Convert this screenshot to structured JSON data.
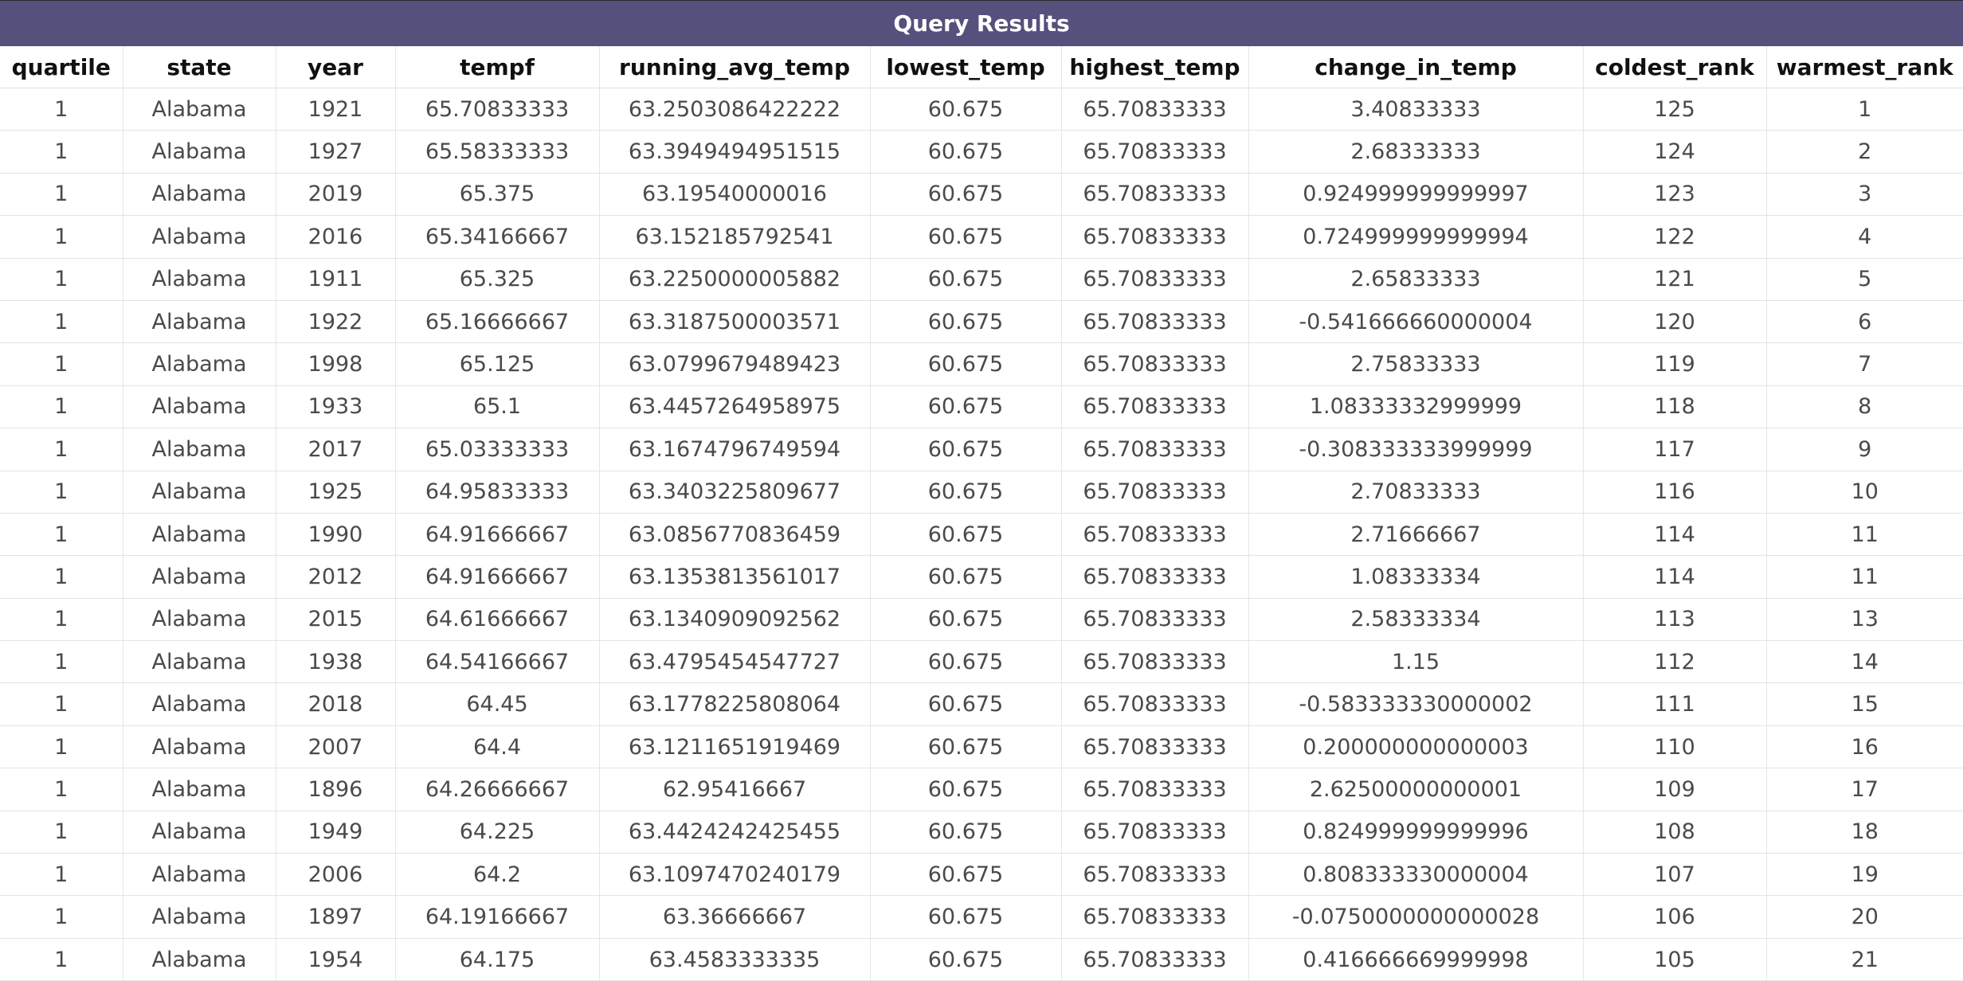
{
  "title": "Query Results",
  "columns": [
    "quartile",
    "state",
    "year",
    "tempf",
    "running_avg_temp",
    "lowest_temp",
    "highest_temp",
    "change_in_temp",
    "coldest_rank",
    "warmest_rank"
  ],
  "rows": [
    [
      "1",
      "Alabama",
      "1921",
      "65.70833333",
      "63.2503086422222",
      "60.675",
      "65.70833333",
      "3.40833333",
      "125",
      "1"
    ],
    [
      "1",
      "Alabama",
      "1927",
      "65.58333333",
      "63.3949494951515",
      "60.675",
      "65.70833333",
      "2.68333333",
      "124",
      "2"
    ],
    [
      "1",
      "Alabama",
      "2019",
      "65.375",
      "63.19540000016",
      "60.675",
      "65.70833333",
      "0.924999999999997",
      "123",
      "3"
    ],
    [
      "1",
      "Alabama",
      "2016",
      "65.34166667",
      "63.152185792541",
      "60.675",
      "65.70833333",
      "0.724999999999994",
      "122",
      "4"
    ],
    [
      "1",
      "Alabama",
      "1911",
      "65.325",
      "63.2250000005882",
      "60.675",
      "65.70833333",
      "2.65833333",
      "121",
      "5"
    ],
    [
      "1",
      "Alabama",
      "1922",
      "65.16666667",
      "63.3187500003571",
      "60.675",
      "65.70833333",
      "-0.541666660000004",
      "120",
      "6"
    ],
    [
      "1",
      "Alabama",
      "1998",
      "65.125",
      "63.0799679489423",
      "60.675",
      "65.70833333",
      "2.75833333",
      "119",
      "7"
    ],
    [
      "1",
      "Alabama",
      "1933",
      "65.1",
      "63.4457264958975",
      "60.675",
      "65.70833333",
      "1.08333332999999",
      "118",
      "8"
    ],
    [
      "1",
      "Alabama",
      "2017",
      "65.03333333",
      "63.1674796749594",
      "60.675",
      "65.70833333",
      "-0.308333333999999",
      "117",
      "9"
    ],
    [
      "1",
      "Alabama",
      "1925",
      "64.95833333",
      "63.3403225809677",
      "60.675",
      "65.70833333",
      "2.70833333",
      "116",
      "10"
    ],
    [
      "1",
      "Alabama",
      "1990",
      "64.91666667",
      "63.0856770836459",
      "60.675",
      "65.70833333",
      "2.71666667",
      "114",
      "11"
    ],
    [
      "1",
      "Alabama",
      "2012",
      "64.91666667",
      "63.1353813561017",
      "60.675",
      "65.70833333",
      "1.08333334",
      "114",
      "11"
    ],
    [
      "1",
      "Alabama",
      "2015",
      "64.61666667",
      "63.1340909092562",
      "60.675",
      "65.70833333",
      "2.58333334",
      "113",
      "13"
    ],
    [
      "1",
      "Alabama",
      "1938",
      "64.54166667",
      "63.4795454547727",
      "60.675",
      "65.70833333",
      "1.15",
      "112",
      "14"
    ],
    [
      "1",
      "Alabama",
      "2018",
      "64.45",
      "63.1778225808064",
      "60.675",
      "65.70833333",
      "-0.583333330000002",
      "111",
      "15"
    ],
    [
      "1",
      "Alabama",
      "2007",
      "64.4",
      "63.1211651919469",
      "60.675",
      "65.70833333",
      "0.200000000000003",
      "110",
      "16"
    ],
    [
      "1",
      "Alabama",
      "1896",
      "64.26666667",
      "62.95416667",
      "60.675",
      "65.70833333",
      "2.62500000000001",
      "109",
      "17"
    ],
    [
      "1",
      "Alabama",
      "1949",
      "64.225",
      "63.4424242425455",
      "60.675",
      "65.70833333",
      "0.824999999999996",
      "108",
      "18"
    ],
    [
      "1",
      "Alabama",
      "2006",
      "64.2",
      "63.1097470240179",
      "60.675",
      "65.70833333",
      "0.808333330000004",
      "107",
      "19"
    ],
    [
      "1",
      "Alabama",
      "1897",
      "64.19166667",
      "63.36666667",
      "60.675",
      "65.70833333",
      "-0.0750000000000028",
      "106",
      "20"
    ],
    [
      "1",
      "Alabama",
      "1954",
      "64.175",
      "63.4583333335",
      "60.675",
      "65.70833333",
      "0.416666669999998",
      "105",
      "21"
    ]
  ]
}
